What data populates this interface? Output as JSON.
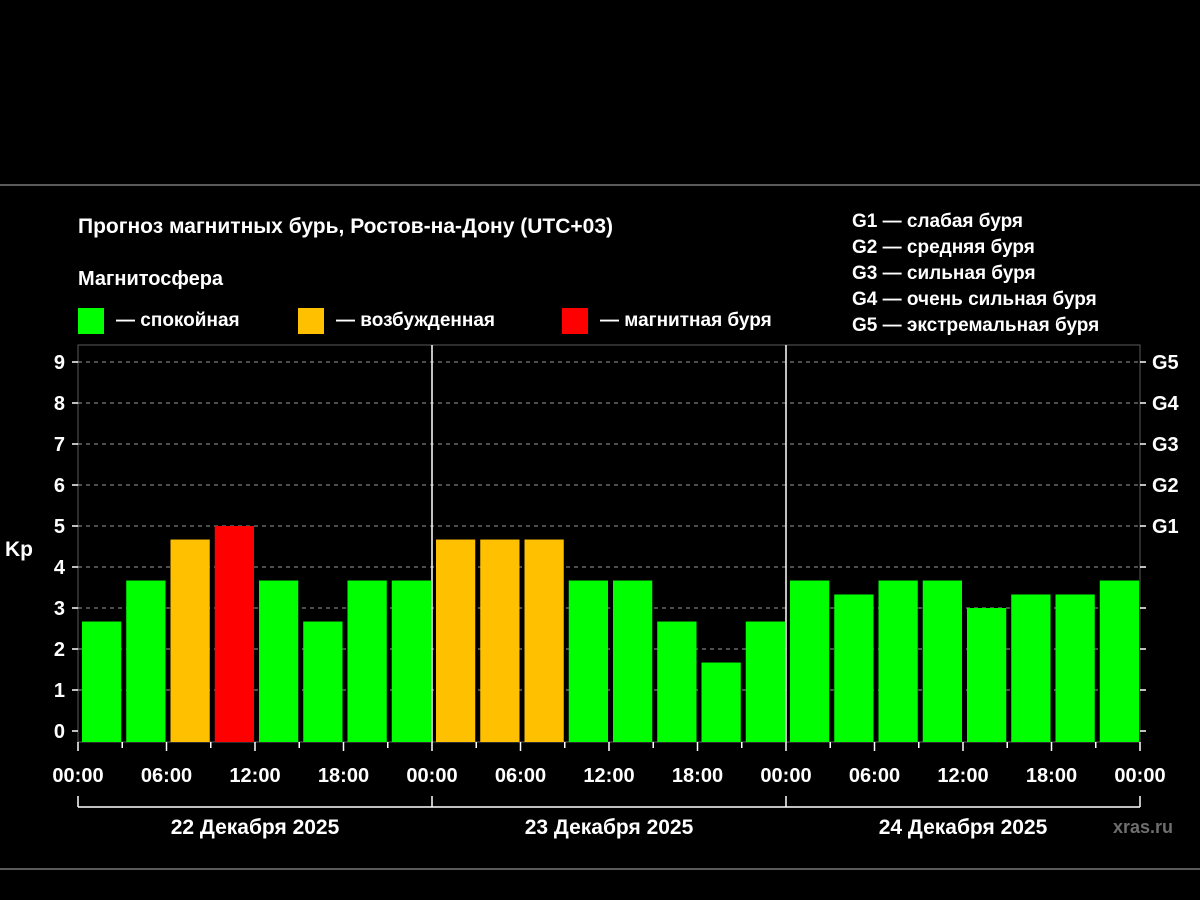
{
  "header": {
    "title": "Прогноз магнитных бурь, Ростов-на-Дону (UTC+03)",
    "subtitle": "Магнитосфера"
  },
  "legend": [
    {
      "label": "— спокойная",
      "color": "#00ff00"
    },
    {
      "label": "— возбужденная",
      "color": "#ffc000"
    },
    {
      "label": "— магнитная буря",
      "color": "#ff0000"
    }
  ],
  "g_scale": [
    "G1 — слабая буря",
    "G2 — средняя буря",
    "G3 — сильная буря",
    "G4 — очень сильная буря",
    "G5 — экстремальная буря"
  ],
  "watermark": "xras.ru",
  "chart_data": {
    "type": "bar",
    "ylabel": "Kp",
    "ylim": [
      0,
      9
    ],
    "yticks": [
      "0",
      "1",
      "2",
      "3",
      "4",
      "5",
      "6",
      "7",
      "8",
      "9"
    ],
    "right_ticks": [
      {
        "value": 5,
        "label": "G1"
      },
      {
        "value": 6,
        "label": "G2"
      },
      {
        "value": 7,
        "label": "G3"
      },
      {
        "value": 8,
        "label": "G4"
      },
      {
        "value": 9,
        "label": "G5"
      }
    ],
    "xtick_labels": [
      "00:00",
      "06:00",
      "12:00",
      "18:00",
      "00:00",
      "06:00",
      "12:00",
      "18:00",
      "00:00",
      "06:00",
      "12:00",
      "18:00",
      "00:00"
    ],
    "days": [
      "22 Декабря 2025",
      "23 Декабря 2025",
      "24 Декабря 2025"
    ],
    "bars_per_day": 8,
    "values": [
      2.67,
      3.67,
      4.67,
      5.0,
      3.67,
      2.67,
      3.67,
      3.67,
      4.67,
      4.67,
      4.67,
      3.67,
      3.67,
      2.67,
      1.67,
      2.67,
      3.67,
      3.33,
      3.67,
      3.67,
      3.0,
      3.33,
      3.33,
      3.67
    ],
    "levels": [
      "quiet",
      "quiet",
      "active",
      "storm",
      "quiet",
      "quiet",
      "quiet",
      "quiet",
      "active",
      "active",
      "active",
      "quiet",
      "quiet",
      "quiet",
      "quiet",
      "quiet",
      "quiet",
      "quiet",
      "quiet",
      "quiet",
      "quiet",
      "quiet",
      "quiet",
      "quiet"
    ],
    "level_colors": {
      "quiet": "#00ff00",
      "active": "#ffc000",
      "storm": "#ff0000"
    },
    "grid": "dashed horizontal"
  }
}
